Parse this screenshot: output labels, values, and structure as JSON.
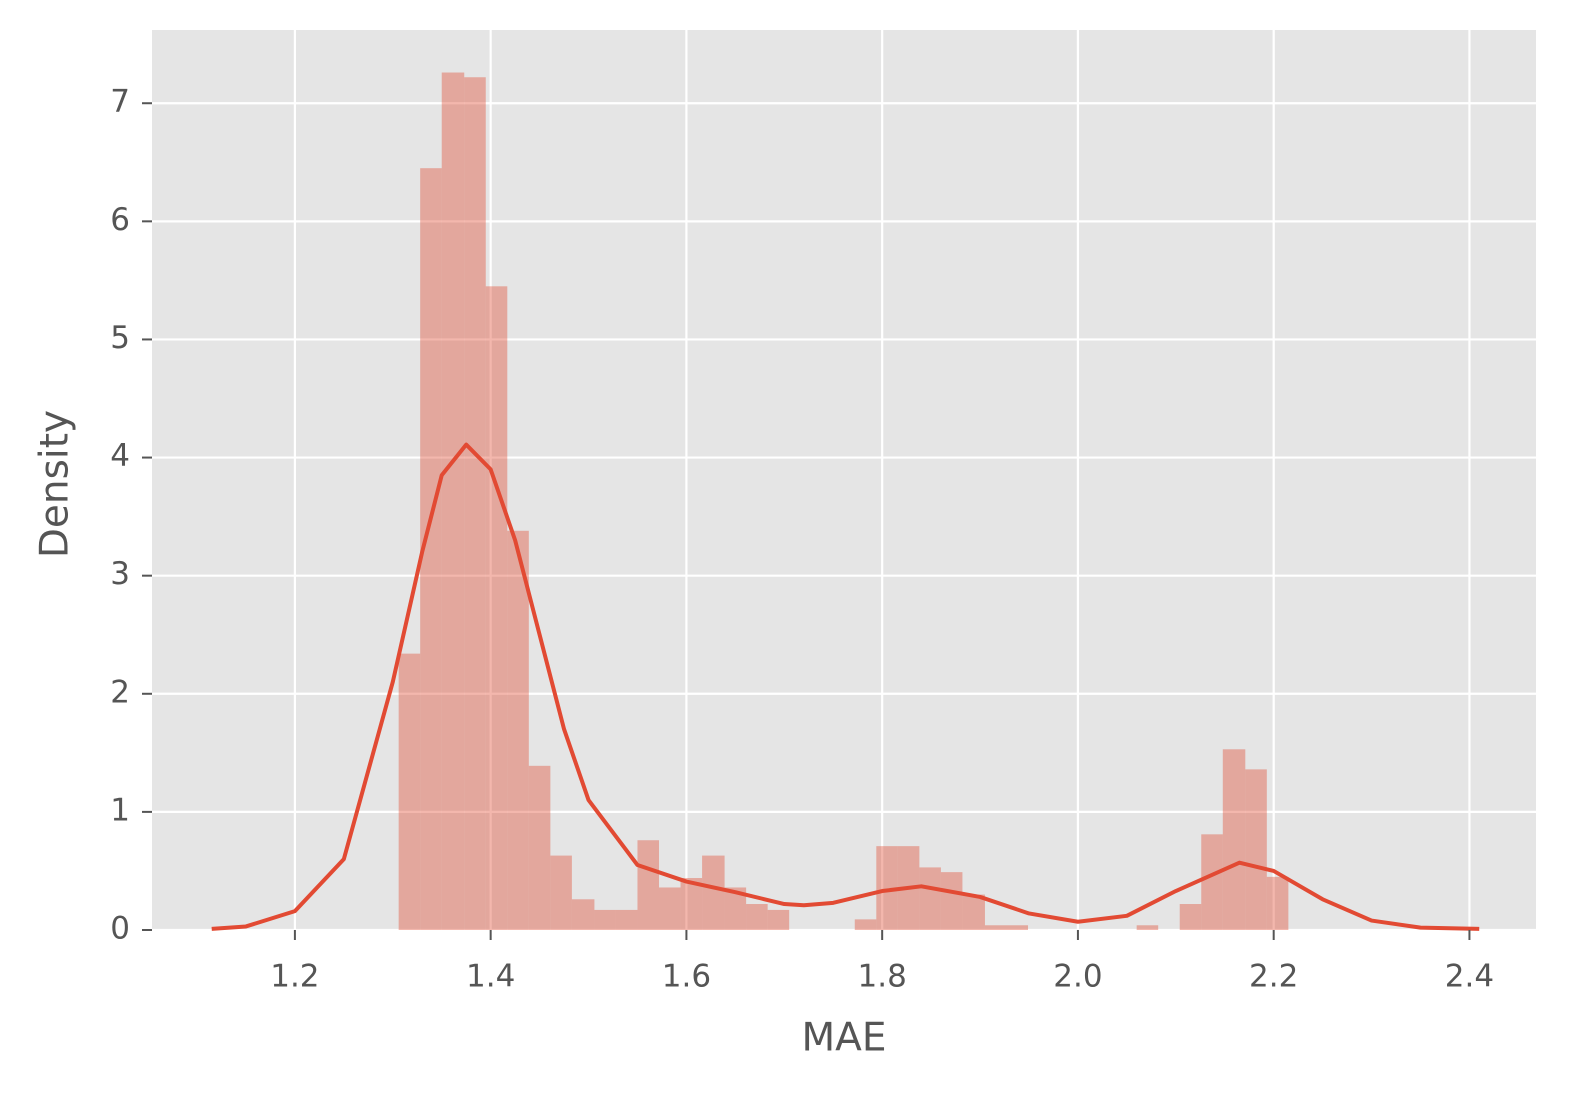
{
  "chart_data": {
    "type": "histogram",
    "xlabel": "MAE",
    "ylabel": "Density",
    "color": "#e24a33",
    "bins": [
      1.306,
      1.328,
      1.35,
      1.373,
      1.395,
      1.417,
      1.439,
      1.461,
      1.483,
      1.506,
      1.528,
      1.55,
      1.572,
      1.594,
      1.616,
      1.639,
      1.661,
      1.683,
      1.705,
      1.727,
      1.749,
      1.772,
      1.794,
      1.816,
      1.838,
      1.86,
      1.882,
      1.905,
      1.927,
      1.949,
      1.971,
      1.993,
      2.015,
      2.038,
      2.06,
      2.082,
      2.104,
      2.126,
      2.148,
      2.171,
      2.193,
      2.215
    ],
    "values": [
      2.34,
      6.45,
      7.26,
      7.22,
      5.45,
      3.38,
      1.39,
      0.63,
      0.26,
      0.17,
      0.17,
      0.76,
      0.36,
      0.44,
      0.63,
      0.36,
      0.22,
      0.17,
      0,
      0,
      0,
      0.09,
      0.71,
      0.71,
      0.53,
      0.49,
      0.3,
      0.04,
      0.04,
      0,
      0,
      0,
      0,
      0,
      0.04,
      0,
      0.22,
      0.81,
      1.53,
      1.36,
      0.45
    ],
    "kde": {
      "x": [
        1.115,
        1.15,
        1.2,
        1.25,
        1.3,
        1.33,
        1.35,
        1.375,
        1.4,
        1.425,
        1.45,
        1.475,
        1.5,
        1.55,
        1.6,
        1.65,
        1.7,
        1.72,
        1.75,
        1.8,
        1.84,
        1.9,
        1.95,
        2.0,
        2.05,
        2.1,
        2.165,
        2.2,
        2.25,
        2.3,
        2.35,
        2.41
      ],
      "values": [
        0.01,
        0.03,
        0.16,
        0.6,
        2.1,
        3.2,
        3.85,
        4.11,
        3.9,
        3.3,
        2.5,
        1.7,
        1.1,
        0.55,
        0.41,
        0.32,
        0.22,
        0.21,
        0.23,
        0.33,
        0.37,
        0.28,
        0.14,
        0.07,
        0.12,
        0.33,
        0.57,
        0.5,
        0.26,
        0.08,
        0.02,
        0.01
      ]
    },
    "xlim": [
      1.054,
      2.468
    ],
    "ylim": [
      0,
      7.62
    ],
    "xticks": [
      1.2,
      1.4,
      1.6,
      1.8,
      {
        "value": 2,
        "label": "2.0"
      },
      2.2,
      2.4
    ],
    "yticks": [
      0,
      1,
      2,
      3,
      4,
      5,
      6,
      7
    ],
    "grid": true
  }
}
